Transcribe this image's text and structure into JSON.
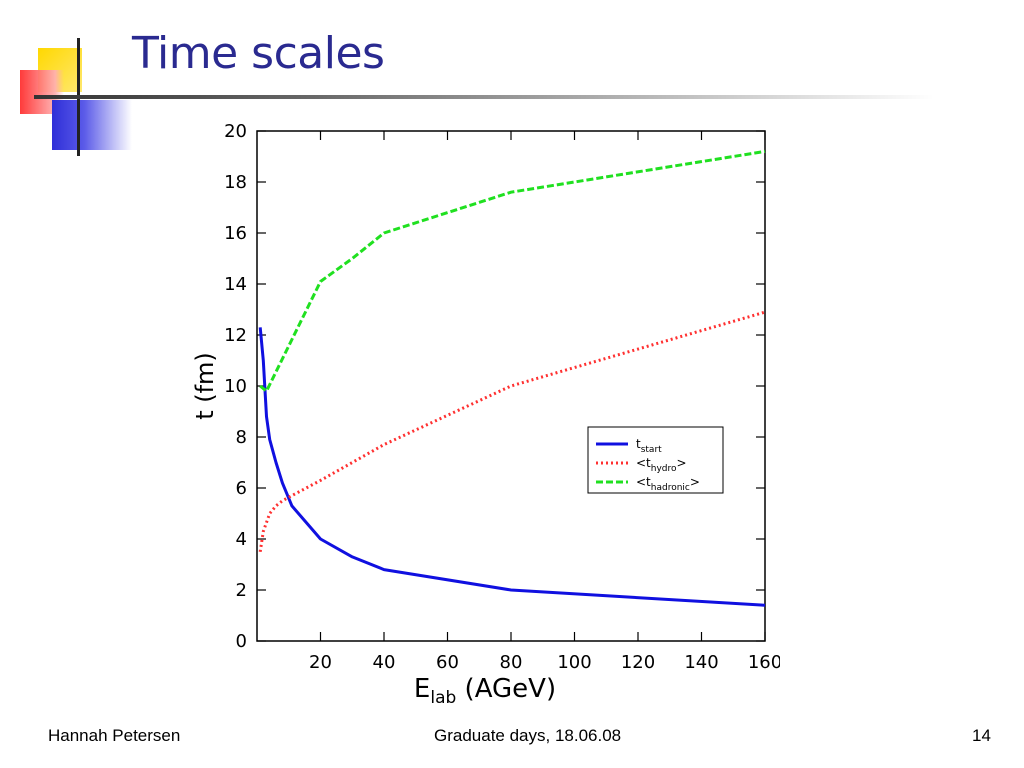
{
  "slide": {
    "title": "Time scales",
    "footer": {
      "author": "Hannah Petersen",
      "event": "Graduate days, 18.06.08",
      "page": "14"
    }
  },
  "colors": {
    "title": "#2a2a90",
    "t_start": "#1010e0",
    "t_hydro": "#ff3030",
    "t_hadronic": "#20e020"
  },
  "chart_data": {
    "type": "line",
    "xlabel": {
      "main": "E",
      "sub": "lab",
      "rest": " (AGeV)"
    },
    "ylabel": "t (fm)",
    "xlim": [
      0,
      160
    ],
    "ylim": [
      0,
      20
    ],
    "xticks": [
      20,
      40,
      60,
      80,
      100,
      120,
      140,
      160
    ],
    "yticks": [
      0,
      2,
      4,
      6,
      8,
      10,
      12,
      14,
      16,
      18,
      20
    ],
    "grid": false,
    "legend_position": "right-middle",
    "series": [
      {
        "name": "t_start",
        "label_main": "t",
        "label_sub": "start",
        "label_pre": "",
        "label_post": "",
        "style": "solid",
        "x": [
          1,
          2,
          3,
          4,
          6,
          8,
          11,
          20,
          30,
          40,
          80,
          160
        ],
        "y": [
          12.3,
          11.0,
          8.8,
          7.9,
          7.0,
          6.2,
          5.3,
          4.0,
          3.3,
          2.8,
          2.0,
          1.4
        ]
      },
      {
        "name": "<t_hydro>",
        "label_main": "t",
        "label_sub": "hydro",
        "label_pre": "<",
        "label_post": ">",
        "style": "dotted",
        "x": [
          1,
          2,
          4,
          6,
          8,
          11,
          20,
          30,
          40,
          80,
          160
        ],
        "y": [
          3.5,
          4.3,
          5.0,
          5.3,
          5.5,
          5.7,
          6.3,
          7.0,
          7.7,
          10.0,
          12.9
        ]
      },
      {
        "name": "<t_hadronic>",
        "label_main": "t",
        "label_sub": "hadronic",
        "label_pre": "<",
        "label_post": ">",
        "style": "dashed",
        "x": [
          1,
          3,
          20,
          30,
          40,
          80,
          160
        ],
        "y": [
          10.0,
          9.8,
          14.1,
          15.0,
          16.0,
          17.6,
          19.2
        ]
      }
    ]
  }
}
